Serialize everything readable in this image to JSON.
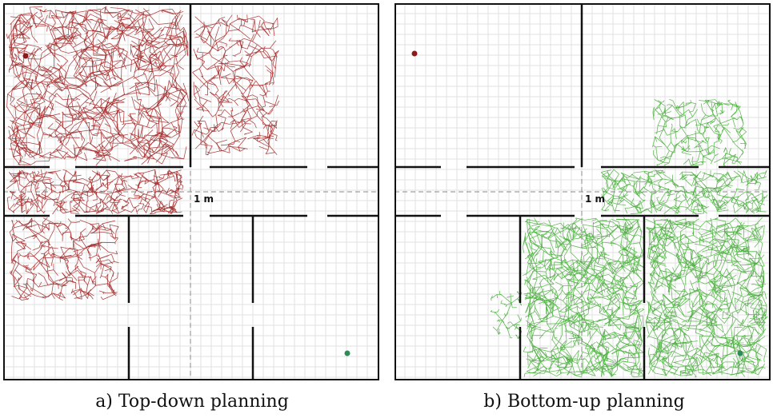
{
  "panels": [
    {
      "id": "a",
      "caption": "a) Top-down planning",
      "scale_label": "1 m",
      "tree_color": "#a52a2a",
      "start_color": "#8b1a1a",
      "goal_color": "#2e8b57"
    },
    {
      "id": "b",
      "caption": "b) Bottom-up planning",
      "scale_label": "1 m",
      "tree_color": "#4caf3f",
      "start_color": "#8b1a1a",
      "goal_color": "#2e8b57"
    }
  ]
}
